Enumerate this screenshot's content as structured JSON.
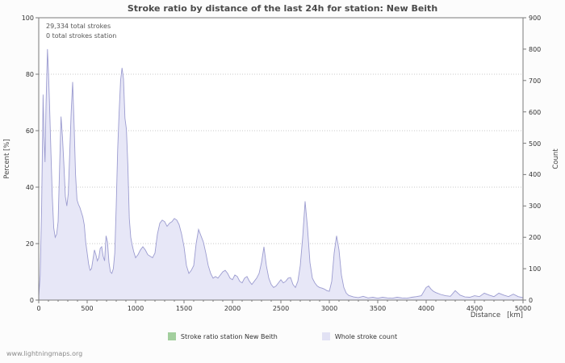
{
  "watermark": "www.lightningmaps.org",
  "chart_data": {
    "type": "area",
    "title": "Stroke ratio by distance of the last 24h for station: New Beith",
    "annotations": [
      "29,334 total strokes",
      "0 total strokes station"
    ],
    "xlabel": "Distance   [km]",
    "ylabel_left": "Percent   [%]",
    "ylabel_right": "Count",
    "xlim": [
      0,
      5000
    ],
    "ylim_left": [
      0,
      100
    ],
    "ylim_right": [
      0,
      900
    ],
    "x_ticks": [
      0,
      500,
      1000,
      1500,
      2000,
      2500,
      3000,
      3500,
      4000,
      4500,
      5000
    ],
    "y_left_ticks": [
      0,
      20,
      40,
      60,
      80,
      100
    ],
    "y_right_ticks": [
      0,
      100,
      200,
      300,
      400,
      500,
      600,
      700,
      800,
      900
    ],
    "grid": true,
    "legend_position": "bottom",
    "colors": {
      "area_fill": "#e7e7f7",
      "area_line": "#9c9cd0",
      "ratio_green": "#a3cf9e",
      "frame": "#7a7a7a",
      "grid": "#c8c8c8"
    },
    "series": [
      {
        "name": "Stroke ratio station New Beith",
        "axis": "left",
        "color": "#a3cf9e",
        "x": [],
        "values": []
      },
      {
        "name": "Whole stroke count",
        "axis": "right",
        "color": "#9c9cd0",
        "fill": "#e7e7f7",
        "x": [
          0,
          15,
          30,
          45,
          55,
          65,
          75,
          90,
          100,
          110,
          125,
          140,
          155,
          170,
          185,
          200,
          215,
          230,
          245,
          260,
          275,
          290,
          305,
          320,
          335,
          350,
          365,
          380,
          395,
          410,
          425,
          440,
          455,
          470,
          485,
          500,
          515,
          530,
          545,
          560,
          575,
          590,
          605,
          620,
          635,
          650,
          665,
          680,
          695,
          710,
          725,
          740,
          755,
          770,
          785,
          800,
          815,
          830,
          845,
          860,
          875,
          890,
          905,
          920,
          935,
          950,
          965,
          980,
          1000,
          1025,
          1050,
          1075,
          1100,
          1125,
          1150,
          1175,
          1200,
          1225,
          1250,
          1275,
          1300,
          1325,
          1350,
          1375,
          1400,
          1425,
          1450,
          1475,
          1500,
          1525,
          1550,
          1575,
          1600,
          1625,
          1650,
          1675,
          1700,
          1725,
          1750,
          1775,
          1800,
          1825,
          1850,
          1875,
          1900,
          1925,
          1950,
          1975,
          2000,
          2025,
          2050,
          2075,
          2100,
          2125,
          2150,
          2175,
          2200,
          2225,
          2250,
          2275,
          2300,
          2325,
          2350,
          2375,
          2400,
          2425,
          2450,
          2475,
          2500,
          2525,
          2550,
          2575,
          2600,
          2625,
          2650,
          2675,
          2700,
          2725,
          2750,
          2775,
          2800,
          2825,
          2850,
          2875,
          2900,
          2925,
          2950,
          2975,
          3000,
          3025,
          3050,
          3075,
          3100,
          3125,
          3150,
          3175,
          3200,
          3250,
          3300,
          3350,
          3400,
          3450,
          3500,
          3550,
          3600,
          3650,
          3700,
          3750,
          3800,
          3850,
          3900,
          3950,
          4000,
          4025,
          4050,
          4075,
          4100,
          4150,
          4200,
          4250,
          4300,
          4350,
          4400,
          4450,
          4500,
          4550,
          4600,
          4650,
          4700,
          4750,
          4800,
          4850,
          4900,
          4950,
          5000
        ],
        "values": [
          10,
          80,
          300,
          655,
          520,
          440,
          620,
          800,
          730,
          640,
          480,
          330,
          230,
          200,
          210,
          250,
          420,
          585,
          520,
          430,
          330,
          300,
          340,
          470,
          600,
          695,
          560,
          400,
          320,
          305,
          295,
          280,
          265,
          240,
          185,
          150,
          115,
          95,
          100,
          130,
          160,
          145,
          125,
          135,
          165,
          170,
          140,
          125,
          205,
          185,
          120,
          90,
          85,
          100,
          150,
          300,
          480,
          600,
          700,
          740,
          705,
          580,
          545,
          430,
          260,
          200,
          175,
          155,
          135,
          145,
          160,
          170,
          160,
          145,
          140,
          135,
          150,
          210,
          245,
          255,
          250,
          235,
          245,
          250,
          260,
          255,
          240,
          210,
          170,
          110,
          85,
          95,
          110,
          180,
          225,
          205,
          185,
          150,
          110,
          85,
          70,
          75,
          70,
          80,
          90,
          95,
          85,
          70,
          65,
          80,
          75,
          60,
          55,
          70,
          75,
          60,
          50,
          60,
          70,
          85,
          120,
          170,
          110,
          70,
          50,
          40,
          45,
          55,
          65,
          55,
          60,
          70,
          72,
          50,
          40,
          60,
          110,
          200,
          315,
          230,
          120,
          70,
          55,
          45,
          40,
          38,
          35,
          30,
          28,
          60,
          150,
          205,
          160,
          80,
          40,
          22,
          15,
          10,
          8,
          12,
          7,
          9,
          6,
          9,
          7,
          6,
          9,
          7,
          6,
          9,
          11,
          14,
          40,
          45,
          35,
          28,
          24,
          18,
          14,
          12,
          30,
          16,
          10,
          9,
          14,
          11,
          22,
          16,
          11,
          22,
          16,
          11,
          19,
          11,
          8
        ]
      }
    ]
  },
  "legend": {
    "items": [
      {
        "label": "Stroke ratio station New Beith",
        "color": "#a3cf9e"
      },
      {
        "label": "Whole stroke count",
        "color": "#e2e2f4"
      }
    ]
  }
}
